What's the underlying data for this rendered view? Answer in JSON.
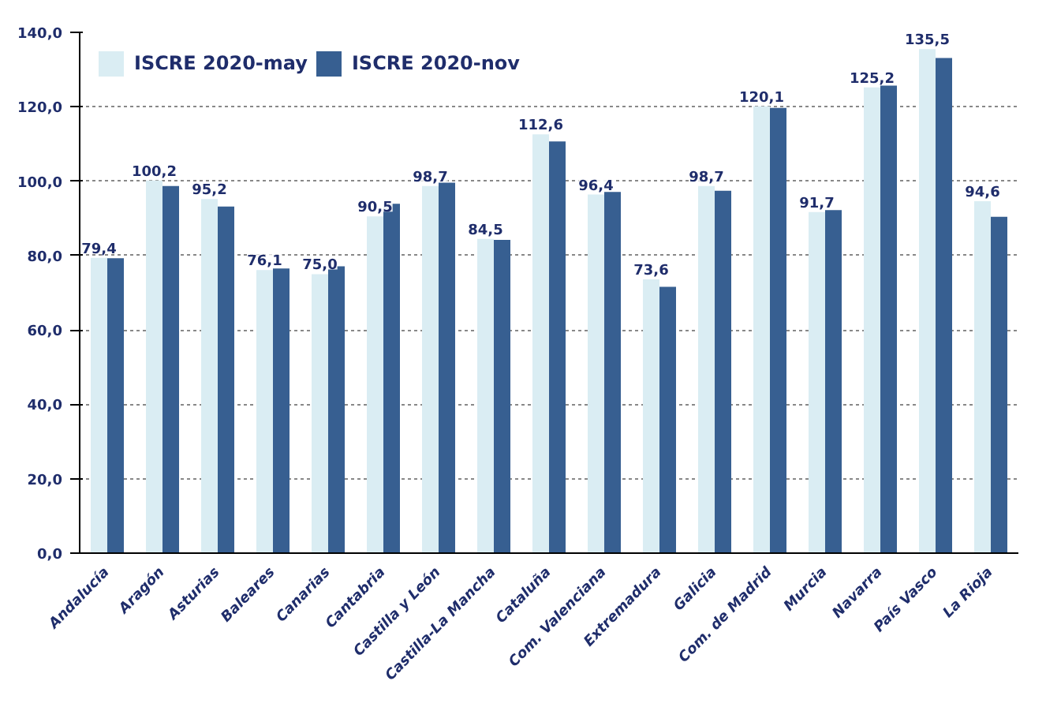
{
  "chart_data": {
    "type": "bar",
    "categories": [
      "Andalucía",
      "Aragón",
      "Asturias",
      "Baleares",
      "Canarias",
      "Cantabria",
      "Castilla y León",
      "Castilla-La Mancha",
      "Cataluña",
      "Com. Valenciana",
      "Extremadura",
      "Galicia",
      "Com. de Madrid",
      "Murcia",
      "Navarra",
      "País Vasco",
      "La Rioja"
    ],
    "series": [
      {
        "name": "ISCRE 2020-may",
        "color": "#daedf3",
        "values": [
          79.4,
          100.2,
          95.2,
          76.1,
          75.0,
          90.5,
          98.7,
          84.5,
          112.6,
          96.4,
          73.6,
          98.7,
          120.1,
          91.7,
          125.2,
          135.5,
          94.6
        ],
        "value_labels": [
          "79,4",
          "100,2",
          "95,2",
          "76,1",
          "75,0",
          "90,5",
          "98,7",
          "84,5",
          "112,6",
          "96,4",
          "73,6",
          "98,7",
          "120,1",
          "91,7",
          "125,2",
          "135,5",
          "94,6"
        ]
      },
      {
        "name": "ISCRE 2020-nov",
        "color": "#375f91",
        "values": [
          79.3,
          98.7,
          93.2,
          76.5,
          77.1,
          93.9,
          99.6,
          84.2,
          110.7,
          97.1,
          71.6,
          97.4,
          119.7,
          92.2,
          125.7,
          133.1,
          90.4
        ]
      }
    ],
    "ylim": [
      0,
      140
    ],
    "yticks": [
      {
        "value": 0,
        "label": "0,0"
      },
      {
        "value": 20,
        "label": "20,0"
      },
      {
        "value": 40,
        "label": "40,0"
      },
      {
        "value": 60,
        "label": "60,0"
      },
      {
        "value": 80,
        "label": "80,0"
      },
      {
        "value": 100,
        "label": "100,0"
      },
      {
        "value": 120,
        "label": "120,0"
      },
      {
        "value": 140,
        "label": "140,0"
      }
    ],
    "grid": "y",
    "legend": "top left"
  }
}
